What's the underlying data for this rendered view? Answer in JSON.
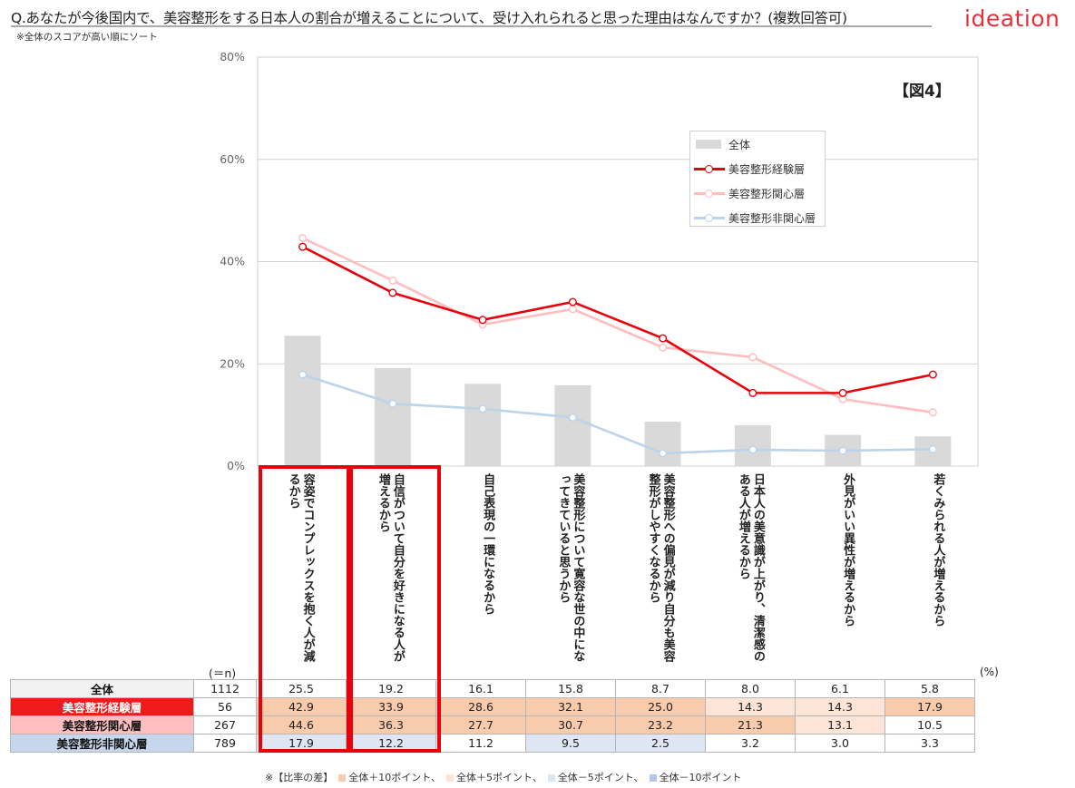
{
  "header": {
    "title": "Q.あなたが今後国内で、美容整形をする日本人の割合が増えることについて、受け入れられると思った理由はなんですか？(複数回答可)",
    "subtitle": "※全体のスコアが高い順にソート",
    "logo": "ideation",
    "figure_label": "【図4】"
  },
  "colors": {
    "bar": "#d9d9d9",
    "experienced": "#e8000b",
    "interested": "#ffbdc0",
    "not_interested": "#bcd3ea"
  },
  "chart_data": {
    "type": "bar",
    "ylim": [
      0,
      80
    ],
    "yticks": [
      "0%",
      "20%",
      "40%",
      "60%",
      "80%"
    ],
    "categories": [
      "容姿でコンプレックスを抱く人が減るから",
      "自信がついて自分を好きになる人が増えるから",
      "自己表現の一環になるから",
      "美容整形について寛容な世の中になってきていると思うから",
      "美容整形への偏見が減り自分も美容整形がしやすくなるから",
      "日本人の美意識が上がり、清潔感のある人が増えるから",
      "外見がいい異性が増えるから",
      "若くみられる人が増えるから"
    ],
    "series": [
      {
        "name": "全体",
        "type": "bar",
        "n": "1112",
        "values": [
          25.5,
          19.2,
          16.1,
          15.8,
          8.7,
          8.0,
          6.1,
          5.8
        ]
      },
      {
        "name": "美容整形経験層",
        "type": "line",
        "n": "56",
        "values": [
          42.9,
          33.9,
          28.6,
          32.1,
          25.0,
          14.3,
          14.3,
          17.9
        ]
      },
      {
        "name": "美容整形関心層",
        "type": "line",
        "n": "267",
        "values": [
          44.6,
          36.3,
          27.7,
          30.7,
          23.2,
          21.3,
          13.1,
          10.5
        ]
      },
      {
        "name": "美容整形非関心層",
        "type": "line",
        "n": "789",
        "values": [
          17.9,
          12.2,
          11.2,
          9.5,
          2.5,
          3.2,
          3.0,
          3.3
        ]
      }
    ],
    "grid": true,
    "legend_position": "top-right"
  },
  "table": {
    "n_header": "(＝n)",
    "unit": "(%)",
    "rows": [
      {
        "label": "全体",
        "n": "1112",
        "values": [
          "25.5",
          "19.2",
          "16.1",
          "15.8",
          "8.7",
          "8.0",
          "6.1",
          "5.8"
        ],
        "hl": [
          "",
          "",
          "",
          "",
          "",
          "",
          "",
          ""
        ]
      },
      {
        "label": "美容整形経験層",
        "n": "56",
        "values": [
          "42.9",
          "33.9",
          "28.6",
          "32.1",
          "25.0",
          "14.3",
          "14.3",
          "17.9"
        ],
        "hl": [
          "hi10",
          "hi10",
          "hi10",
          "hi10",
          "hi10",
          "hi5",
          "hi5",
          "hi10"
        ]
      },
      {
        "label": "美容整形関心層",
        "n": "267",
        "values": [
          "44.6",
          "36.3",
          "27.7",
          "30.7",
          "23.2",
          "21.3",
          "13.1",
          "10.5"
        ],
        "hl": [
          "hi10",
          "hi10",
          "hi10",
          "hi10",
          "hi10",
          "hi10",
          "hi5",
          ""
        ]
      },
      {
        "label": "美容整形非関心層",
        "n": "789",
        "values": [
          "17.9",
          "12.2",
          "11.2",
          "9.5",
          "2.5",
          "3.2",
          "3.0",
          "3.3"
        ],
        "hl": [
          "lo5",
          "lo5",
          "",
          "lo5",
          "lo5",
          "",
          "",
          ""
        ]
      }
    ]
  },
  "footnote": {
    "prefix": "※【比率の差】",
    "items": [
      {
        "label": "全体＋10ポイント、",
        "color": "#f8cbad"
      },
      {
        "label": "全体＋5ポイント、",
        "color": "#fce4d6"
      },
      {
        "label": "全体－5ポイント、",
        "color": "#dde6f2"
      },
      {
        "label": "全体－10ポイント",
        "color": "#b4c7e7"
      }
    ]
  }
}
